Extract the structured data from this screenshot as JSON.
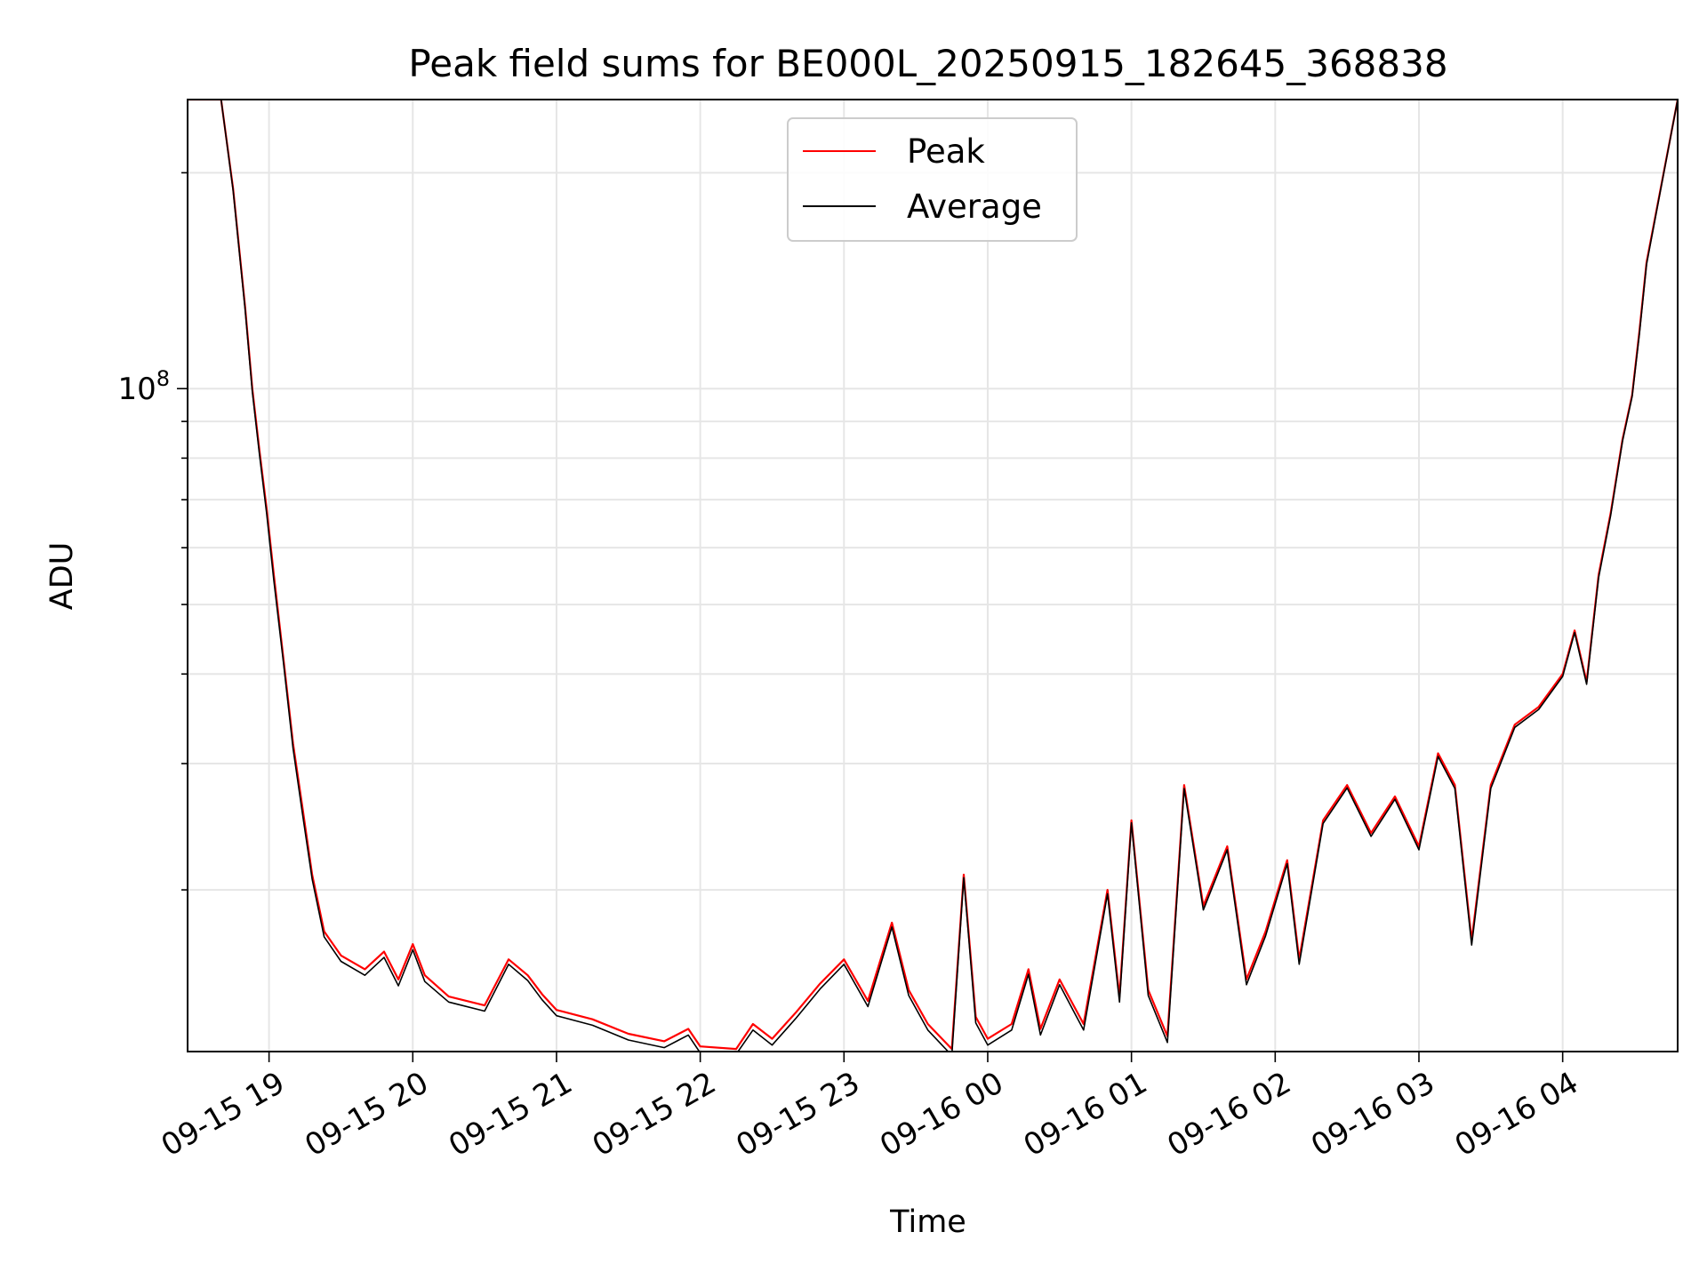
{
  "chart_data": {
    "type": "line",
    "title": "Peak field sums for BE000L_20250915_182645_368838",
    "xlabel": "Time",
    "ylabel": "ADU",
    "y_scale": "log",
    "x_range": [
      "09-15 18:26",
      "09-16 04:48"
    ],
    "ylim": [
      11900000,
      253000000
    ],
    "x_ticks": [
      "09-15 19",
      "09-15 20",
      "09-15 21",
      "09-15 22",
      "09-15 23",
      "09-16 00",
      "09-16 01",
      "09-16 02",
      "09-16 03",
      "09-16 04"
    ],
    "y_tick_labels": [
      {
        "base": "10",
        "exponent": "8",
        "value": 100000000
      }
    ],
    "y_minor_ticks": [
      20000000,
      30000000,
      40000000,
      50000000,
      60000000,
      70000000,
      80000000,
      90000000,
      200000000
    ],
    "grid": true,
    "legend": {
      "position": "top-center",
      "entries": [
        "Peak",
        "Average"
      ]
    },
    "colors": {
      "Peak": "#ff0000",
      "Average": "#000000"
    },
    "x_times": [
      "09-15 18:26",
      "09-15 18:40",
      "09-15 18:45",
      "09-15 18:50",
      "09-15 18:53",
      "09-15 18:56",
      "09-15 18:59",
      "09-15 19:02",
      "09-15 19:06",
      "09-15 19:10",
      "09-15 19:14",
      "09-15 19:18",
      "09-15 19:23",
      "09-15 19:30",
      "09-15 19:40",
      "09-15 19:48",
      "09-15 19:54",
      "09-15 20:00",
      "09-15 20:05",
      "09-15 20:15",
      "09-15 20:30",
      "09-15 20:40",
      "09-15 20:48",
      "09-15 20:54",
      "09-15 21:00",
      "09-15 21:15",
      "09-15 21:30",
      "09-15 21:45",
      "09-15 21:55",
      "09-15 22:00",
      "09-15 22:15",
      "09-15 22:22",
      "09-15 22:30",
      "09-15 22:40",
      "09-15 22:50",
      "09-15 23:00",
      "09-15 23:10",
      "09-15 23:20",
      "09-15 23:27",
      "09-15 23:35",
      "09-15 23:45",
      "09-15 23:50",
      "09-15 23:55",
      "09-16 00:00",
      "09-16 00:10",
      "09-16 00:17",
      "09-16 00:22",
      "09-16 00:30",
      "09-16 00:40",
      "09-16 00:50",
      "09-16 00:55",
      "09-16 01:00",
      "09-16 01:07",
      "09-16 01:15",
      "09-16 01:22",
      "09-16 01:30",
      "09-16 01:40",
      "09-16 01:48",
      "09-16 01:56",
      "09-16 02:05",
      "09-16 02:10",
      "09-16 02:20",
      "09-16 02:30",
      "09-16 02:40",
      "09-16 02:50",
      "09-16 03:00",
      "09-16 03:08",
      "09-16 03:15",
      "09-16 03:22",
      "09-16 03:30",
      "09-16 03:40",
      "09-16 03:50",
      "09-16 04:00",
      "09-16 04:05",
      "09-16 04:10",
      "09-16 04:15",
      "09-16 04:20",
      "09-16 04:25",
      "09-16 04:29",
      "09-16 04:32",
      "09-16 04:35",
      "09-16 04:48"
    ],
    "series": [
      {
        "name": "Peak",
        "values": [
          253000000,
          253000000,
          190000000,
          130000000,
          100000000,
          82000000,
          68000000,
          55000000,
          42000000,
          32000000,
          26000000,
          21000000,
          17500000,
          16200000,
          15500000,
          16400000,
          15000000,
          16800000,
          15200000,
          14200000,
          13800000,
          16000000,
          15200000,
          14300000,
          13600000,
          13200000,
          12600000,
          12300000,
          12800000,
          12100000,
          12000000,
          13000000,
          12400000,
          13500000,
          14800000,
          16000000,
          14000000,
          18000000,
          14500000,
          13000000,
          12000000,
          21000000,
          13300000,
          12400000,
          13000000,
          15500000,
          12800000,
          15000000,
          13000000,
          20000000,
          14200000,
          25000000,
          14500000,
          12500000,
          28000000,
          19000000,
          23000000,
          15000000,
          17500000,
          22000000,
          16000000,
          25000000,
          28000000,
          24000000,
          27000000,
          23000000,
          31000000,
          28000000,
          17000000,
          28000000,
          34000000,
          36000000,
          40000000,
          46000000,
          39000000,
          55000000,
          67000000,
          85000000,
          98000000,
          120000000,
          150000000,
          253000000
        ]
      },
      {
        "name": "Average",
        "values": [
          253000000,
          253000000,
          189000000,
          129000000,
          99000000,
          81000000,
          67000000,
          54000000,
          41500000,
          31500000,
          25500000,
          20700000,
          17200000,
          15900000,
          15200000,
          16100000,
          14700000,
          16500000,
          14900000,
          13950000,
          13550000,
          15750000,
          14950000,
          14050000,
          13350000,
          12950000,
          12350000,
          12050000,
          12550000,
          11850000,
          11800000,
          12750000,
          12150000,
          13250000,
          14550000,
          15750000,
          13750000,
          17750000,
          14250000,
          12750000,
          11750000,
          20800000,
          13050000,
          12150000,
          12750000,
          15250000,
          12550000,
          14750000,
          12750000,
          19750000,
          13950000,
          24800000,
          14250000,
          12250000,
          27700000,
          18750000,
          22750000,
          14750000,
          17250000,
          21750000,
          15750000,
          24750000,
          27750000,
          23750000,
          26750000,
          22750000,
          30700000,
          27700000,
          16750000,
          27700000,
          33700000,
          35700000,
          39700000,
          45700000,
          38700000,
          54500000,
          66500000,
          84500000,
          97500000,
          119000000,
          149000000,
          253000000
        ]
      }
    ]
  }
}
